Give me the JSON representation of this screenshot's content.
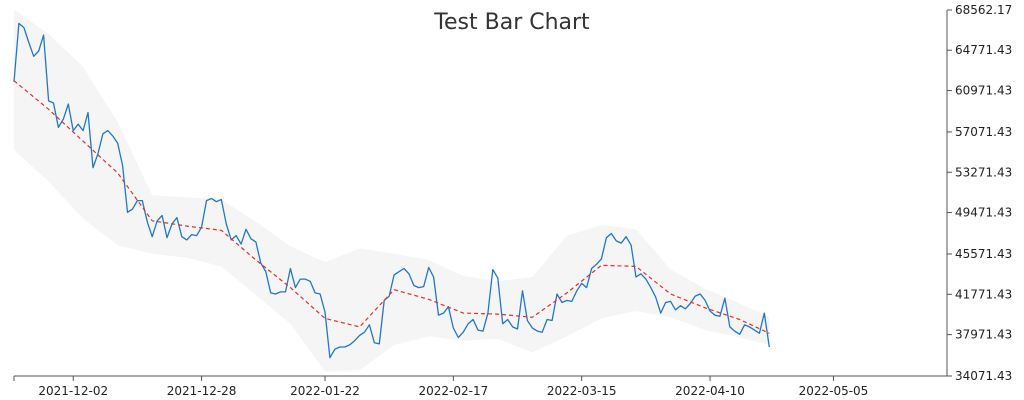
{
  "chart_data": {
    "type": "line",
    "title": "Test Bar Chart",
    "xlabel": "",
    "ylabel": "",
    "x_ticks": [
      "2021-12-02",
      "2021-12-28",
      "2022-01-22",
      "2022-02-17",
      "2022-03-15",
      "2022-04-10",
      "2022-05-05"
    ],
    "y_ticks": [
      "68562.17",
      "64771.43",
      "60971.43",
      "57071.43",
      "53271.43",
      "49471.43",
      "45571.43",
      "41771.43",
      "37971.43",
      "34071.43"
    ],
    "ylim": [
      34071.43,
      68562.17
    ],
    "xlim": [
      "2021-11-20",
      "2022-05-28"
    ],
    "y_axis_position": "right",
    "grid": false,
    "legend": "none",
    "colors": {
      "price": "#1f77c9",
      "moving_average": "#e03030",
      "band": "#eeeeee"
    },
    "series": [
      {
        "style": "solid",
        "points": [
          [
            "2021-11-20",
            61800
          ],
          [
            "2021-11-21",
            67300
          ],
          [
            "2021-11-22",
            66900
          ],
          [
            "2021-11-23",
            65500
          ],
          [
            "2021-11-24",
            64200
          ],
          [
            "2021-11-25",
            64700
          ],
          [
            "2021-11-26",
            66200
          ],
          [
            "2021-11-27",
            60000
          ],
          [
            "2021-11-28",
            59800
          ],
          [
            "2021-11-29",
            57500
          ],
          [
            "2021-11-30",
            58300
          ],
          [
            "2021-12-01",
            59700
          ],
          [
            "2021-12-02",
            57200
          ],
          [
            "2021-12-03",
            57800
          ],
          [
            "2021-12-04",
            57200
          ],
          [
            "2021-12-05",
            58900
          ],
          [
            "2021-12-06",
            53700
          ],
          [
            "2021-12-07",
            55000
          ],
          [
            "2021-12-08",
            56900
          ],
          [
            "2021-12-09",
            57200
          ],
          [
            "2021-12-10",
            56700
          ],
          [
            "2021-12-11",
            56000
          ],
          [
            "2021-12-12",
            53900
          ],
          [
            "2021-12-13",
            49500
          ],
          [
            "2021-12-14",
            49800
          ],
          [
            "2021-12-15",
            50600
          ],
          [
            "2021-12-16",
            50600
          ],
          [
            "2021-12-17",
            48600
          ],
          [
            "2021-12-18",
            47200
          ],
          [
            "2021-12-19",
            48700
          ],
          [
            "2021-12-20",
            49200
          ],
          [
            "2021-12-21",
            47100
          ],
          [
            "2021-12-22",
            48400
          ],
          [
            "2021-12-23",
            49000
          ],
          [
            "2021-12-24",
            47200
          ],
          [
            "2021-12-25",
            46900
          ],
          [
            "2021-12-26",
            47400
          ],
          [
            "2021-12-27",
            47300
          ],
          [
            "2021-12-28",
            48100
          ],
          [
            "2021-12-29",
            50600
          ],
          [
            "2021-12-30",
            50800
          ],
          [
            "2021-12-31",
            50500
          ],
          [
            "2022-01-01",
            50700
          ],
          [
            "2022-01-02",
            48400
          ],
          [
            "2022-01-03",
            46900
          ],
          [
            "2022-01-04",
            47300
          ],
          [
            "2022-01-05",
            46500
          ],
          [
            "2022-01-06",
            47900
          ],
          [
            "2022-01-07",
            47000
          ],
          [
            "2022-01-08",
            46700
          ],
          [
            "2022-01-09",
            44700
          ],
          [
            "2022-01-10",
            43900
          ],
          [
            "2022-01-11",
            41900
          ],
          [
            "2022-01-12",
            41800
          ],
          [
            "2022-01-13",
            42000
          ],
          [
            "2022-01-14",
            42000
          ],
          [
            "2022-01-15",
            44200
          ],
          [
            "2022-01-16",
            42400
          ],
          [
            "2022-01-17",
            43200
          ],
          [
            "2022-01-18",
            43200
          ],
          [
            "2022-01-19",
            43000
          ],
          [
            "2022-01-20",
            41900
          ],
          [
            "2022-01-21",
            41800
          ],
          [
            "2022-01-22",
            40100
          ],
          [
            "2022-01-23",
            35800
          ],
          [
            "2022-01-24",
            36600
          ],
          [
            "2022-01-25",
            36800
          ],
          [
            "2022-01-26",
            36800
          ],
          [
            "2022-01-27",
            37000
          ],
          [
            "2022-01-28",
            37400
          ],
          [
            "2022-01-29",
            37900
          ],
          [
            "2022-01-30",
            38200
          ],
          [
            "2022-01-31",
            38900
          ],
          [
            "2022-02-01",
            37200
          ],
          [
            "2022-02-02",
            37100
          ],
          [
            "2022-02-03",
            41200
          ],
          [
            "2022-02-04",
            41600
          ],
          [
            "2022-02-05",
            43600
          ],
          [
            "2022-02-06",
            43900
          ],
          [
            "2022-02-07",
            44200
          ],
          [
            "2022-02-08",
            43700
          ],
          [
            "2022-02-09",
            42600
          ],
          [
            "2022-02-10",
            42400
          ],
          [
            "2022-02-11",
            42500
          ],
          [
            "2022-02-12",
            44300
          ],
          [
            "2022-02-13",
            43400
          ],
          [
            "2022-02-14",
            39800
          ],
          [
            "2022-02-15",
            40000
          ],
          [
            "2022-02-16",
            40600
          ],
          [
            "2022-02-17",
            38600
          ],
          [
            "2022-02-18",
            37700
          ],
          [
            "2022-02-19",
            38200
          ],
          [
            "2022-02-20",
            39000
          ],
          [
            "2022-02-21",
            39400
          ],
          [
            "2022-02-22",
            38400
          ],
          [
            "2022-02-23",
            38300
          ],
          [
            "2022-02-24",
            40000
          ],
          [
            "2022-02-25",
            44100
          ],
          [
            "2022-02-26",
            43300
          ],
          [
            "2022-02-27",
            39000
          ],
          [
            "2022-02-28",
            39400
          ],
          [
            "2022-03-01",
            38700
          ],
          [
            "2022-03-02",
            38500
          ],
          [
            "2022-03-03",
            42100
          ],
          [
            "2022-03-04",
            39300
          ],
          [
            "2022-03-05",
            38600
          ],
          [
            "2022-03-06",
            38300
          ],
          [
            "2022-03-07",
            38200
          ],
          [
            "2022-03-08",
            39400
          ],
          [
            "2022-03-09",
            39300
          ],
          [
            "2022-03-10",
            41800
          ],
          [
            "2022-03-11",
            41000
          ],
          [
            "2022-03-12",
            41200
          ],
          [
            "2022-03-13",
            41100
          ],
          [
            "2022-03-14",
            42100
          ],
          [
            "2022-03-15",
            42800
          ],
          [
            "2022-03-16",
            42400
          ],
          [
            "2022-03-17",
            44200
          ],
          [
            "2022-03-18",
            44600
          ],
          [
            "2022-03-19",
            45100
          ],
          [
            "2022-03-20",
            47100
          ],
          [
            "2022-03-21",
            47500
          ],
          [
            "2022-03-22",
            46800
          ],
          [
            "2022-03-23",
            46600
          ],
          [
            "2022-03-24",
            47200
          ],
          [
            "2022-03-25",
            46400
          ],
          [
            "2022-03-26",
            43400
          ],
          [
            "2022-03-27",
            43700
          ],
          [
            "2022-03-28",
            43200
          ],
          [
            "2022-03-29",
            42400
          ],
          [
            "2022-03-30",
            41500
          ],
          [
            "2022-03-31",
            40000
          ],
          [
            "2022-04-01",
            41000
          ],
          [
            "2022-04-02",
            41100
          ],
          [
            "2022-04-03",
            40300
          ],
          [
            "2022-04-04",
            40700
          ],
          [
            "2022-04-05",
            40400
          ],
          [
            "2022-04-06",
            40900
          ],
          [
            "2022-04-07",
            41600
          ],
          [
            "2022-04-08",
            41800
          ],
          [
            "2022-04-09",
            41200
          ],
          [
            "2022-04-10",
            40200
          ],
          [
            "2022-04-11",
            39800
          ],
          [
            "2022-04-12",
            39700
          ],
          [
            "2022-04-13",
            41400
          ],
          [
            "2022-04-14",
            38700
          ],
          [
            "2022-04-15",
            38300
          ],
          [
            "2022-04-16",
            38000
          ],
          [
            "2022-04-17",
            38900
          ],
          [
            "2022-04-18",
            38700
          ],
          [
            "2022-04-19",
            38400
          ],
          [
            "2022-04-20",
            38100
          ],
          [
            "2022-04-21",
            40000
          ],
          [
            "2022-04-22",
            36800
          ]
        ]
      },
      {
        "style": "dashed",
        "points": [
          [
            "2021-11-20",
            61900
          ],
          [
            "2021-11-27",
            59200
          ],
          [
            "2021-12-04",
            56200
          ],
          [
            "2021-12-11",
            53200
          ],
          [
            "2021-12-18",
            48700
          ],
          [
            "2021-12-25",
            48200
          ],
          [
            "2022-01-01",
            47800
          ],
          [
            "2022-01-08",
            45000
          ],
          [
            "2022-01-15",
            42400
          ],
          [
            "2022-01-22",
            39500
          ],
          [
            "2022-01-29",
            38700
          ],
          [
            "2022-02-05",
            42200
          ],
          [
            "2022-02-12",
            41300
          ],
          [
            "2022-02-19",
            40000
          ],
          [
            "2022-02-26",
            39900
          ],
          [
            "2022-03-05",
            39600
          ],
          [
            "2022-03-12",
            41900
          ],
          [
            "2022-03-19",
            44500
          ],
          [
            "2022-03-26",
            44400
          ],
          [
            "2022-04-02",
            41800
          ],
          [
            "2022-04-09",
            40500
          ],
          [
            "2022-04-16",
            39400
          ],
          [
            "2022-04-22",
            38100
          ]
        ]
      }
    ],
    "band": {
      "upper": [
        [
          "2021-11-20",
          68600
        ],
        [
          "2021-11-27",
          66300
        ],
        [
          "2021-12-04",
          63200
        ],
        [
          "2021-12-11",
          58000
        ],
        [
          "2021-12-18",
          51100
        ],
        [
          "2021-12-25",
          50900
        ],
        [
          "2022-01-01",
          50700
        ],
        [
          "2022-01-08",
          48600
        ],
        [
          "2022-01-15",
          46300
        ],
        [
          "2022-01-22",
          44800
        ],
        [
          "2022-01-29",
          46100
        ],
        [
          "2022-02-05",
          45600
        ],
        [
          "2022-02-12",
          45000
        ],
        [
          "2022-02-19",
          43500
        ],
        [
          "2022-02-26",
          43000
        ],
        [
          "2022-03-05",
          43400
        ],
        [
          "2022-03-12",
          47300
        ],
        [
          "2022-03-19",
          48300
        ],
        [
          "2022-03-26",
          47900
        ],
        [
          "2022-04-02",
          44100
        ],
        [
          "2022-04-09",
          42300
        ],
        [
          "2022-04-16",
          40900
        ],
        [
          "2022-04-22",
          39600
        ]
      ],
      "lower": [
        [
          "2021-11-20",
          55400
        ],
        [
          "2021-11-27",
          52400
        ],
        [
          "2021-12-04",
          48900
        ],
        [
          "2021-12-11",
          46400
        ],
        [
          "2021-12-18",
          45600
        ],
        [
          "2021-12-25",
          45200
        ],
        [
          "2022-01-01",
          44400
        ],
        [
          "2022-01-08",
          41700
        ],
        [
          "2022-01-15",
          39000
        ],
        [
          "2022-01-22",
          34500
        ],
        [
          "2022-01-29",
          34600
        ],
        [
          "2022-02-05",
          37000
        ],
        [
          "2022-02-12",
          37800
        ],
        [
          "2022-02-19",
          37400
        ],
        [
          "2022-02-26",
          37600
        ],
        [
          "2022-03-05",
          36300
        ],
        [
          "2022-03-12",
          37800
        ],
        [
          "2022-03-19",
          39500
        ],
        [
          "2022-03-26",
          40200
        ],
        [
          "2022-04-02",
          39600
        ],
        [
          "2022-04-09",
          38400
        ],
        [
          "2022-04-16",
          37700
        ],
        [
          "2022-04-22",
          37000
        ]
      ]
    }
  }
}
